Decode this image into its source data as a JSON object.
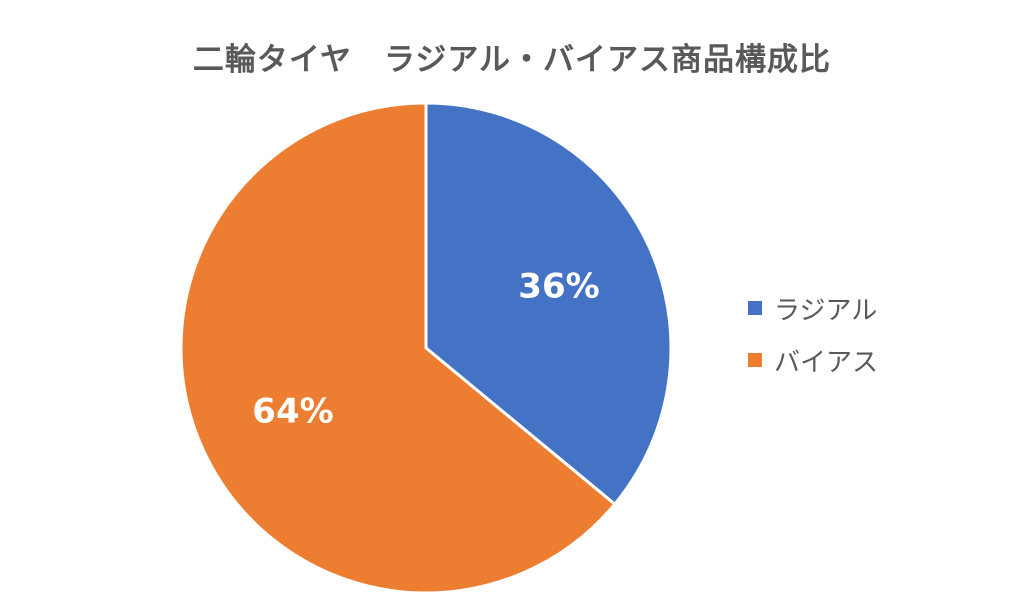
{
  "chart_data": {
    "type": "pie",
    "title": "二輪タイヤ　ラジアル・バイアス商品構成比",
    "categories": [
      "ラジアル",
      "バイアス"
    ],
    "values": [
      36,
      64
    ],
    "data_labels": [
      "36%",
      "64%"
    ],
    "colors": [
      "#4472C4",
      "#ED7D31"
    ],
    "legend": "right",
    "start_angle_deg": 0,
    "direction": "clockwise"
  }
}
